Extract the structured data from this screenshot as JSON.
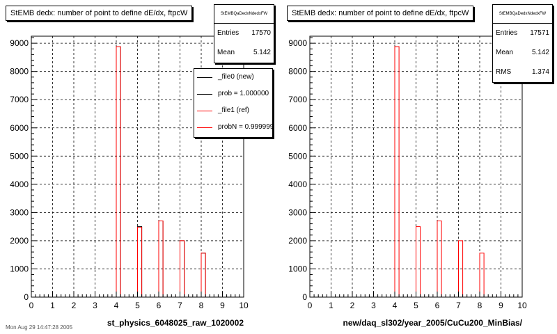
{
  "pads": [
    {
      "title": "StEMB dedx: number of point to define dE/dx, ftpcW",
      "stats": {
        "name": "StEMBQaDedxNdedxFW",
        "rows": [
          {
            "label": "Entries",
            "value": "17570"
          },
          {
            "label": "Mean",
            "value": "5.142"
          }
        ]
      },
      "legend": [
        {
          "label": "_file0 (new)",
          "color": "#000000"
        },
        {
          "label": "prob = 1.000000",
          "color": "#000000"
        },
        {
          "label": "_file1 (ref)",
          "color": "#ff0000"
        },
        {
          "label": "probN = 0.999999",
          "color": "#ff0000"
        }
      ],
      "xlabel": "st_physics_6048025_raw_1020002"
    },
    {
      "title": "StEMB dedx: number of point to define dE/dx, ftpcW",
      "stats": {
        "name": "StEMBQaDedxNdedxFW",
        "rows": [
          {
            "label": "Entries",
            "value": "17571"
          },
          {
            "label": "Mean",
            "value": "5.142"
          },
          {
            "label": "RMS",
            "value": "1.374"
          }
        ]
      },
      "legend": [],
      "xlabel": "new/daq_sl302/year_2005/CuCu200_MinBias/"
    }
  ],
  "footer": "Mon Aug 29 14:47:28 2005",
  "chart_data": [
    {
      "type": "bar",
      "title": "StEMB dedx: number of point to define dE/dx, ftpcW",
      "xlabel": "st_physics_6048025_raw_1020002",
      "ylabel": "",
      "xlim": [
        0,
        10
      ],
      "ylim": [
        0,
        9250
      ],
      "grid": true,
      "legend_placement": "top-right",
      "xticks": [
        "0",
        "1",
        "2",
        "3",
        "4",
        "5",
        "6",
        "7",
        "8",
        "9",
        "10"
      ],
      "yticks": [
        "0",
        "1000",
        "2000",
        "3000",
        "4000",
        "5000",
        "6000",
        "7000",
        "8000",
        "9000"
      ],
      "bin_width": 0.2,
      "series": [
        {
          "name": "_file0 (new)",
          "color": "#000000",
          "points": [
            {
              "x": 4.1,
              "y": 8880
            },
            {
              "x": 5.1,
              "y": 2500
            },
            {
              "x": 6.1,
              "y": 2700
            },
            {
              "x": 7.1,
              "y": 2000
            },
            {
              "x": 8.1,
              "y": 1560
            }
          ]
        },
        {
          "name": "_file1 (ref)",
          "color": "#ff0000",
          "points": [
            {
              "x": 4.1,
              "y": 8880
            },
            {
              "x": 5.1,
              "y": 2480
            },
            {
              "x": 6.1,
              "y": 2700
            },
            {
              "x": 7.1,
              "y": 2000
            },
            {
              "x": 8.1,
              "y": 1560
            }
          ]
        }
      ]
    },
    {
      "type": "bar",
      "title": "StEMB dedx: number of point to define dE/dx, ftpcW",
      "xlabel": "new/daq_sl302/year_2005/CuCu200_MinBias/",
      "ylabel": "",
      "xlim": [
        0,
        10
      ],
      "ylim": [
        0,
        9250
      ],
      "grid": true,
      "xticks": [
        "0",
        "1",
        "2",
        "3",
        "4",
        "5",
        "6",
        "7",
        "8",
        "9",
        "10"
      ],
      "yticks": [
        "0",
        "1000",
        "2000",
        "3000",
        "4000",
        "5000",
        "6000",
        "7000",
        "8000",
        "9000"
      ],
      "bin_width": 0.2,
      "series": [
        {
          "color": "#ff0000",
          "points": [
            {
              "x": 4.1,
              "y": 8880
            },
            {
              "x": 5.1,
              "y": 2500
            },
            {
              "x": 6.1,
              "y": 2700
            },
            {
              "x": 7.1,
              "y": 2000
            },
            {
              "x": 8.1,
              "y": 1560
            }
          ]
        }
      ]
    }
  ]
}
